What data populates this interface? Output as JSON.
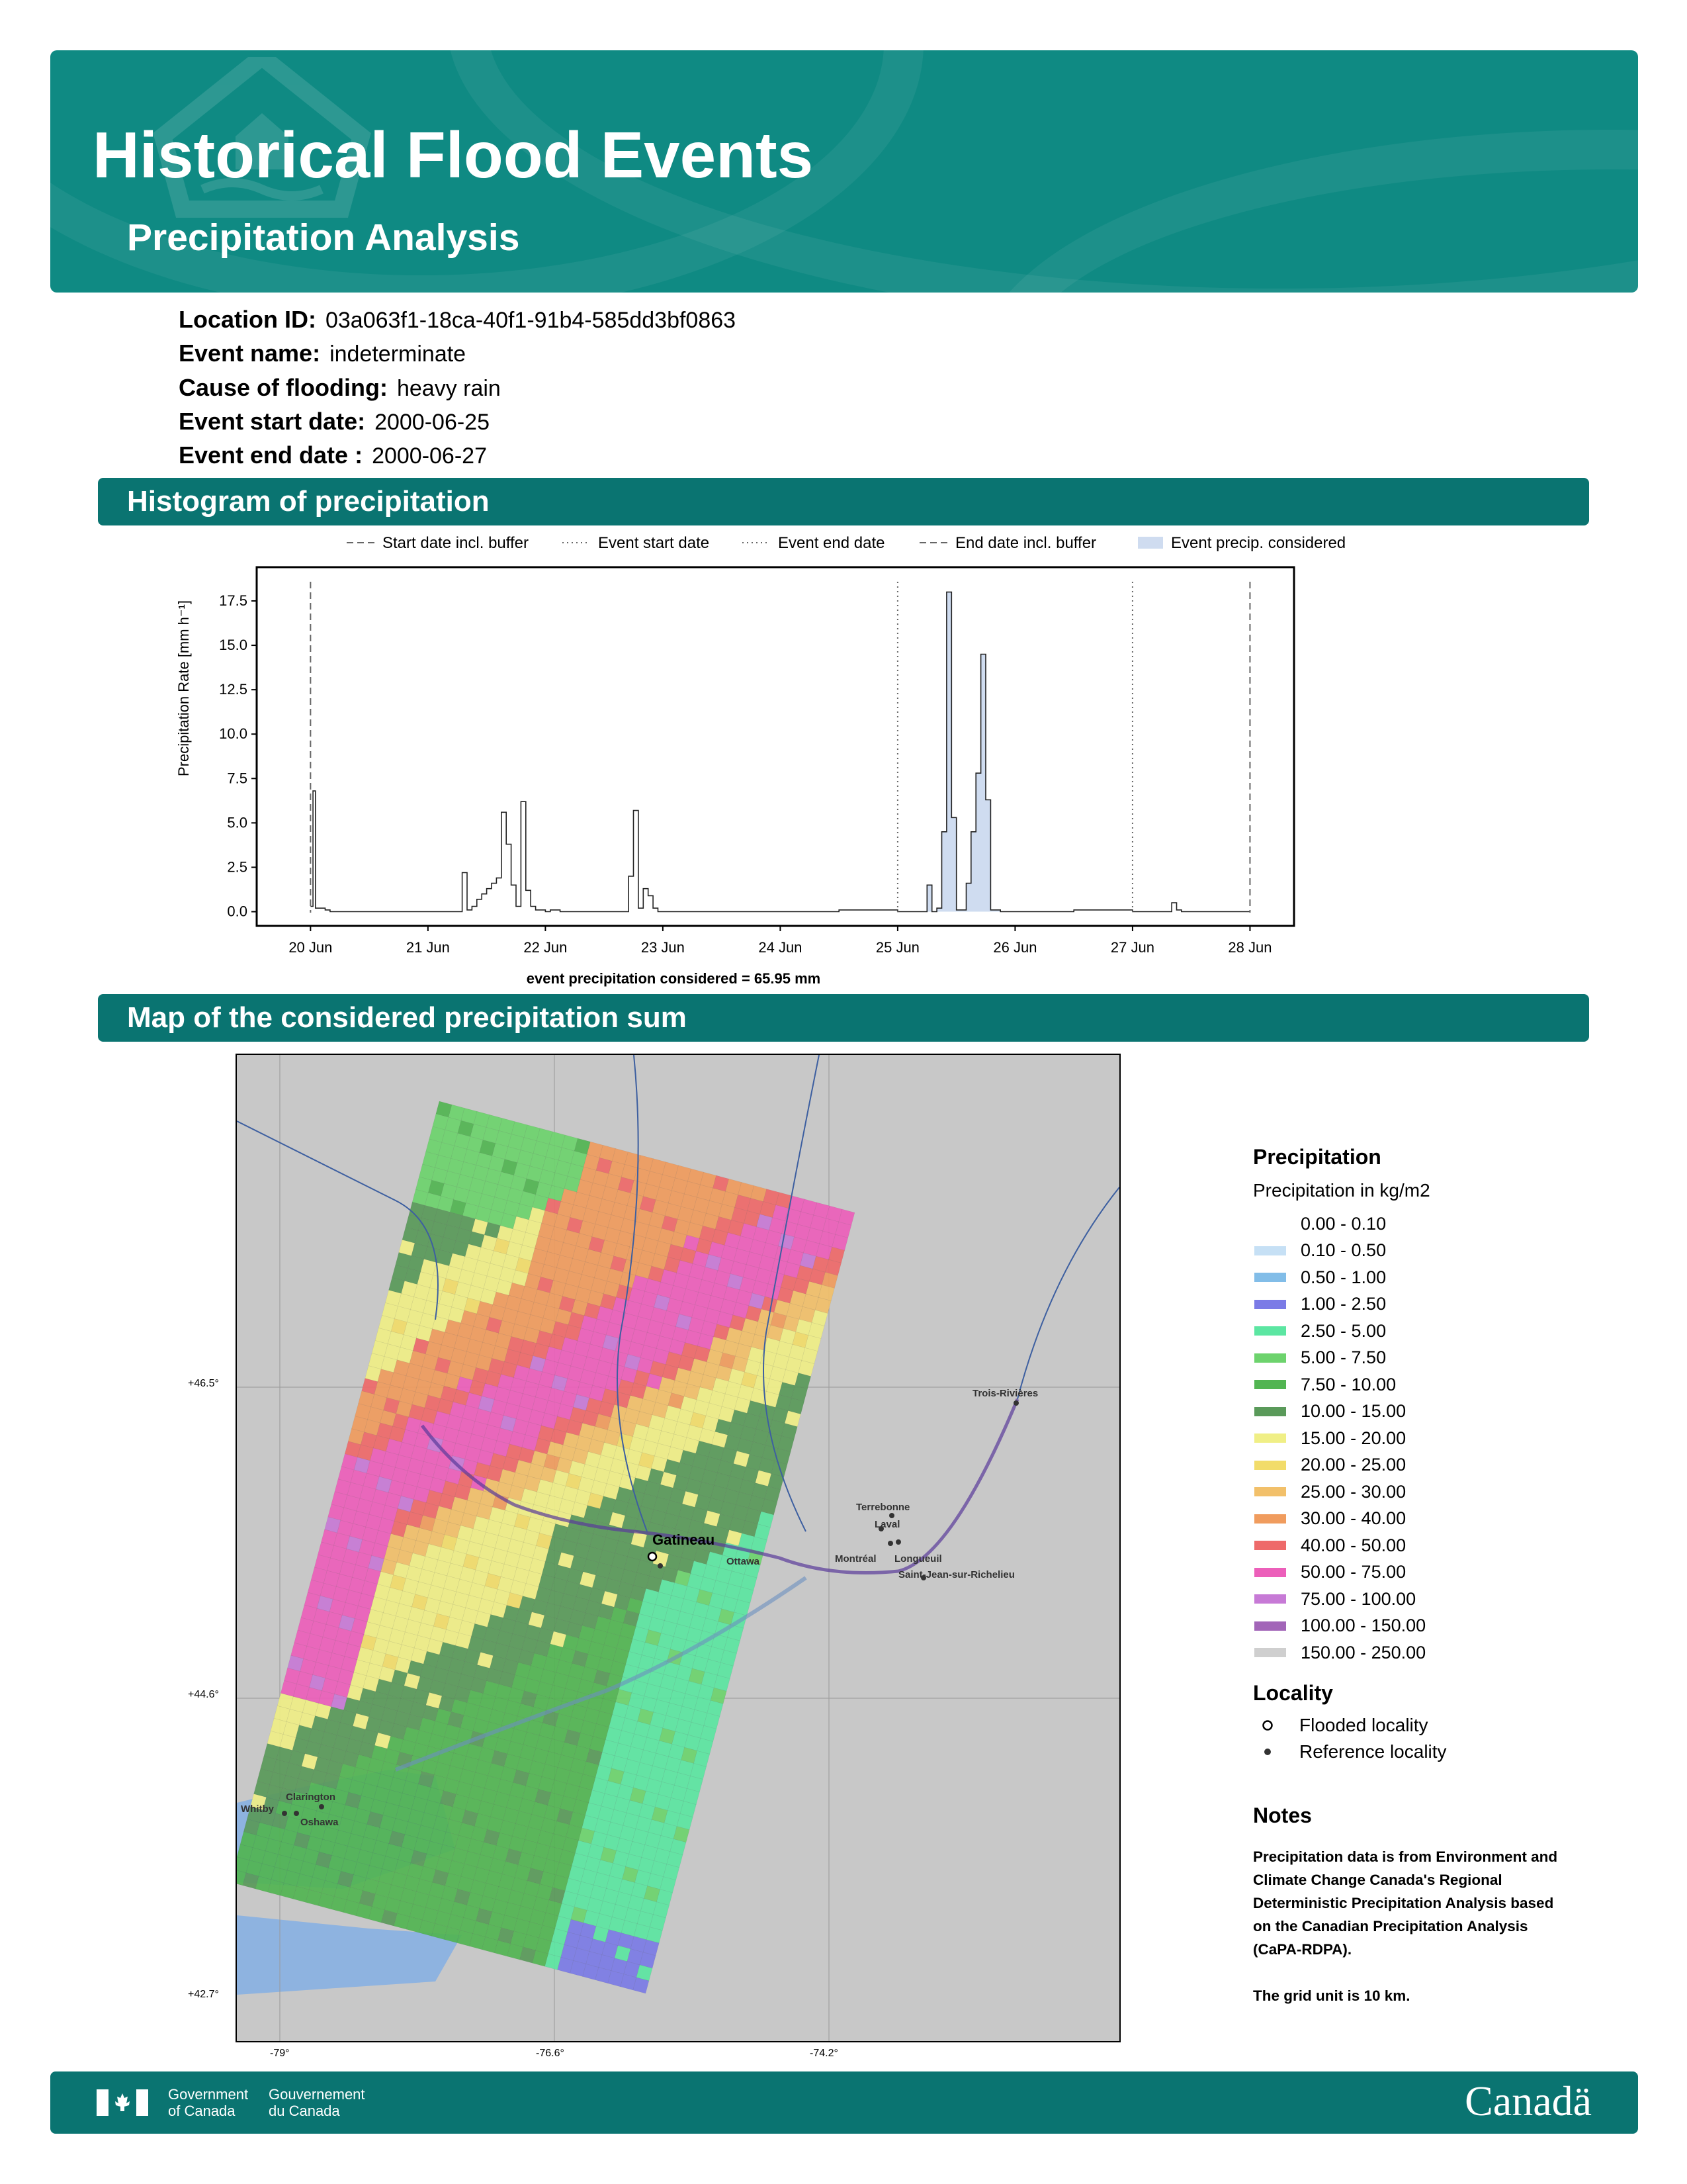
{
  "header": {
    "title": "Historical Flood Events",
    "subtitle": "Precipitation Analysis"
  },
  "event_info": [
    {
      "label": "Location ID:",
      "value": "03a063f1-18ca-40f1-91b4-585dd3bf0863"
    },
    {
      "label": "Event name:",
      "value": "indeterminate"
    },
    {
      "label": "Cause of flooding:",
      "value": "heavy rain"
    },
    {
      "label": "Event start date:",
      "value": "2000-06-25"
    },
    {
      "label": "Event end date :",
      "value": "2000-06-27"
    }
  ],
  "sections": {
    "histogram": "Histogram of precipitation",
    "map": "Map of the considered precipitation sum"
  },
  "chart_data": {
    "type": "line",
    "ylabel": "Precipitation Rate [mm h⁻¹]",
    "xlabel": "event precipitation considered = 65.95 mm",
    "ylim": [
      -0.8,
      19.4
    ],
    "yticks": [
      "0.0",
      "2.5",
      "5.0",
      "7.5",
      "10.0",
      "12.5",
      "15.0",
      "17.5"
    ],
    "xlim": [
      "2000-06-19T13:00",
      "2000-06-28T09:00"
    ],
    "xticks": [
      "20 Jun",
      "21 Jun",
      "22 Jun",
      "23 Jun",
      "24 Jun",
      "25 Jun",
      "26 Jun",
      "27 Jun",
      "28 Jun"
    ],
    "legend": [
      {
        "label": "Start date incl. buffer",
        "style": "dashed"
      },
      {
        "label": "Event start date",
        "style": "dotted"
      },
      {
        "label": "Event end date",
        "style": "dotted"
      },
      {
        "label": "End date incl. buffer",
        "style": "dashed"
      },
      {
        "label": "Event precip. considered",
        "style": "fill"
      }
    ],
    "vlines": [
      {
        "x": "2000-06-20T00:00",
        "style": "dashed"
      },
      {
        "x": "2000-06-25T00:00",
        "style": "dotted"
      },
      {
        "x": "2000-06-27T00:00",
        "style": "dotted"
      },
      {
        "x": "2000-06-28T00:00",
        "style": "dashed"
      }
    ],
    "fill_range": [
      "2000-06-25T00:00",
      "2000-06-26T00:00"
    ],
    "series": [
      {
        "x": [
          "2000-06-20T00:00",
          "2000-06-20T00:30",
          "2000-06-20T01:00",
          "2000-06-20T03:00",
          "2000-06-20T04:00",
          "2000-06-21T00:00",
          "2000-06-21T07:00",
          "2000-06-21T08:00",
          "2000-06-21T09:00",
          "2000-06-21T10:00",
          "2000-06-21T11:00",
          "2000-06-21T12:00",
          "2000-06-21T13:00",
          "2000-06-21T14:00",
          "2000-06-21T15:00",
          "2000-06-21T16:00",
          "2000-06-21T17:00",
          "2000-06-21T18:00",
          "2000-06-21T19:00",
          "2000-06-21T20:00",
          "2000-06-21T21:00",
          "2000-06-21T22:00",
          "2000-06-21T23:00",
          "2000-06-22T00:00",
          "2000-06-22T01:00",
          "2000-06-22T03:00",
          "2000-06-22T06:00",
          "2000-06-22T12:00",
          "2000-06-22T17:00",
          "2000-06-22T18:00",
          "2000-06-22T19:00",
          "2000-06-22T20:00",
          "2000-06-22T21:00",
          "2000-06-22T22:00",
          "2000-06-22T23:00",
          "2000-06-23T00:00",
          "2000-06-23T03:00",
          "2000-06-23T12:00",
          "2000-06-24T12:00",
          "2000-06-25T00:00",
          "2000-06-25T03:00",
          "2000-06-25T06:00",
          "2000-06-25T07:00",
          "2000-06-25T08:00",
          "2000-06-25T09:00",
          "2000-06-25T10:00",
          "2000-06-25T11:00",
          "2000-06-25T12:00",
          "2000-06-25T13:00",
          "2000-06-25T14:00",
          "2000-06-25T15:00",
          "2000-06-25T16:00",
          "2000-06-25T17:00",
          "2000-06-25T18:00",
          "2000-06-25T19:00",
          "2000-06-25T20:00",
          "2000-06-25T21:00",
          "2000-06-26T00:00",
          "2000-06-26T03:00",
          "2000-06-26T12:00",
          "2000-06-27T00:00",
          "2000-06-27T08:00",
          "2000-06-27T09:00",
          "2000-06-27T10:00",
          "2000-06-27T12:00",
          "2000-06-28T00:00"
        ],
        "values": [
          0.3,
          6.8,
          0.2,
          0.1,
          0.0,
          0.0,
          2.2,
          0.1,
          0.3,
          0.7,
          1.0,
          1.3,
          1.6,
          1.9,
          5.6,
          3.8,
          1.5,
          0.3,
          6.2,
          1.2,
          0.3,
          0.1,
          0.1,
          0.0,
          0.1,
          0.0,
          0.0,
          0.0,
          2.0,
          5.7,
          0.2,
          1.3,
          0.9,
          0.2,
          0.0,
          0.0,
          0.0,
          0.0,
          0.1,
          0.0,
          0.0,
          1.5,
          0.0,
          0.2,
          4.5,
          18.0,
          5.3,
          0.1,
          0.1,
          1.6,
          4.5,
          7.8,
          14.5,
          6.3,
          0.1,
          0.1,
          0.0,
          0.0,
          0.0,
          0.1,
          0.0,
          0.5,
          0.1,
          0.0,
          0.0,
          0.0
        ]
      }
    ]
  },
  "map": {
    "lat_labels": [
      "+46.5°",
      "+44.6°",
      "+42.7°"
    ],
    "lon_labels": [
      "-79°",
      "-76.6°",
      "-74.2°"
    ],
    "localities": [
      {
        "name": "Gatineau",
        "type": "flooded"
      },
      {
        "name": "Ottawa",
        "type": "reference"
      },
      {
        "name": "Terrebonne",
        "type": "reference"
      },
      {
        "name": "Laval",
        "type": "reference"
      },
      {
        "name": "Montréal",
        "type": "reference"
      },
      {
        "name": "Longueuil",
        "type": "reference"
      },
      {
        "name": "Saint-Jean-sur-Richelieu",
        "type": "reference"
      },
      {
        "name": "Trois-Rivières",
        "type": "reference"
      },
      {
        "name": "Clarington",
        "type": "reference"
      },
      {
        "name": "Whitby",
        "type": "reference"
      },
      {
        "name": "Oshawa",
        "type": "reference"
      }
    ]
  },
  "legend": {
    "title": "Precipitation",
    "subtitle": "Precipitation in kg/m2",
    "classes": [
      {
        "label": "0.00 - 0.10",
        "color": "#ffffff"
      },
      {
        "label": "0.10 - 0.50",
        "color": "#c6e0f5"
      },
      {
        "label": "0.50 - 1.00",
        "color": "#82bde8"
      },
      {
        "label": "1.00 - 2.50",
        "color": "#7b7be6"
      },
      {
        "label": "2.50 - 5.00",
        "color": "#5ce6a2"
      },
      {
        "label": "5.00 - 7.50",
        "color": "#6dd36d"
      },
      {
        "label": "7.50 - 10.00",
        "color": "#52b552"
      },
      {
        "label": "10.00 - 15.00",
        "color": "#5a9a5a"
      },
      {
        "label": "15.00 - 20.00",
        "color": "#f0ef86"
      },
      {
        "label": "20.00 - 25.00",
        "color": "#f2dc6a"
      },
      {
        "label": "25.00 - 30.00",
        "color": "#f2c06a"
      },
      {
        "label": "30.00 - 40.00",
        "color": "#f09c5e"
      },
      {
        "label": "40.00 - 50.00",
        "color": "#ee6a6a"
      },
      {
        "label": "50.00 - 75.00",
        "color": "#ec5fba"
      },
      {
        "label": "75.00 - 100.00",
        "color": "#c77ad6"
      },
      {
        "label": "100.00 - 150.00",
        "color": "#a265b8"
      },
      {
        "label": "150.00 - 250.00",
        "color": "#cfcfcf"
      }
    ],
    "locality_title": "Locality",
    "flooded_label": "Flooded locality",
    "reference_label": "Reference locality"
  },
  "notes": {
    "title": "Notes",
    "lines": [
      "Precipitation data is from Environment and",
      "Climate Change Canada's Regional",
      "Deterministic Precipitation Analysis based",
      "on the Canadian Precipitation Analysis",
      "(CaPA-RDPA)."
    ],
    "grid_note": "The grid unit is 10 km."
  },
  "footer": {
    "gov_en_1": "Government",
    "gov_en_2": "of Canada",
    "gov_fr_1": "Gouvernement",
    "gov_fr_2": "du Canada",
    "wordmark": "Canadä"
  }
}
